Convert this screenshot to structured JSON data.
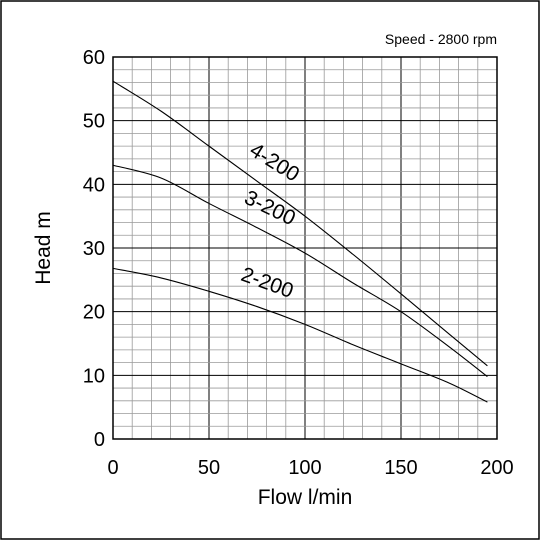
{
  "chart_data": {
    "type": "line",
    "annotation": "Speed - 2800 rpm",
    "xlabel": "Flow l/min",
    "ylabel": "Head m",
    "xlim": [
      0,
      200
    ],
    "ylim": [
      0,
      60
    ],
    "xticks": [
      "0",
      "50",
      "100",
      "150",
      "200"
    ],
    "yticks": [
      "0",
      "10",
      "20",
      "30",
      "40",
      "50",
      "60"
    ],
    "grid": true,
    "series": [
      {
        "name": "4-200",
        "x": [
          0,
          25,
          50,
          75,
          100,
          125,
          150,
          175,
          195
        ],
        "y": [
          56.2,
          51.5,
          46,
          40.5,
          35,
          29,
          22.8,
          16.5,
          11.5
        ]
      },
      {
        "name": "3-200",
        "x": [
          0,
          25,
          50,
          75,
          100,
          125,
          150,
          175,
          195
        ],
        "y": [
          43,
          41,
          37,
          33.2,
          29.2,
          24.5,
          20,
          14.5,
          9.8
        ]
      },
      {
        "name": "2-200",
        "x": [
          0,
          25,
          50,
          75,
          100,
          125,
          150,
          175,
          195
        ],
        "y": [
          26.8,
          25.3,
          23.2,
          20.8,
          18,
          14.8,
          11.8,
          8.8,
          5.8
        ]
      }
    ]
  }
}
